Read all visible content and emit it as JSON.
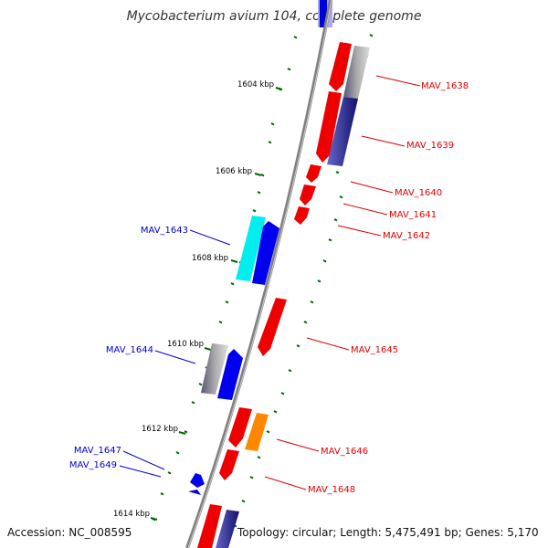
{
  "title": "Mycobacterium avium 104, complete genome",
  "footer": {
    "accession": "Accession: NC_008595",
    "topology": "Topology: circular; Length: 5,475,491 bp; Genes: 5,170"
  },
  "kbp_labels": [
    "1604 kbp",
    "1606 kbp",
    "1608 kbp",
    "1610 kbp",
    "1612 kbp",
    "1614 kbp"
  ],
  "genes": [
    {
      "label": "MAV_1638",
      "strand": "right",
      "color": "#dd0000"
    },
    {
      "label": "MAV_1639",
      "strand": "right",
      "color": "#dd0000"
    },
    {
      "label": "MAV_1640",
      "strand": "right",
      "color": "#dd0000"
    },
    {
      "label": "MAV_1641",
      "strand": "right",
      "color": "#dd0000"
    },
    {
      "label": "MAV_1642",
      "strand": "right",
      "color": "#dd0000"
    },
    {
      "label": "MAV_1643",
      "strand": "left",
      "color": "#0000cc"
    },
    {
      "label": "MAV_1644",
      "strand": "left",
      "color": "#0000cc"
    },
    {
      "label": "MAV_1645",
      "strand": "right",
      "color": "#dd0000"
    },
    {
      "label": "MAV_1646",
      "strand": "right",
      "color": "#dd0000"
    },
    {
      "label": "MAV_1647",
      "strand": "left",
      "color": "#0000cc"
    },
    {
      "label": "MAV_1648",
      "strand": "right",
      "color": "#dd0000"
    },
    {
      "label": "MAV_1649",
      "strand": "left",
      "color": "#0000cc"
    }
  ],
  "colors": {
    "forward_cds": "#ee0000",
    "reverse_cds": "#0000ee",
    "backbone": "#808080",
    "tick": "#006600",
    "gc_skew": "#8888cc",
    "orange_feature": "#ff8800",
    "cyan_feature": "#00eeee"
  }
}
